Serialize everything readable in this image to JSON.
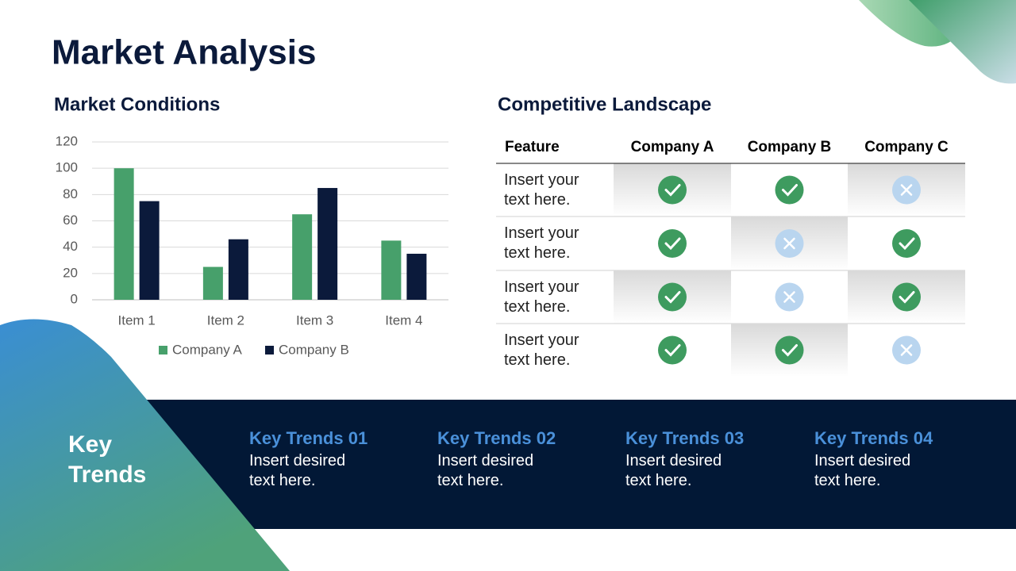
{
  "title": "Market Analysis",
  "chart_data": {
    "type": "bar",
    "title": "Market Conditions",
    "categories": [
      "Item 1",
      "Item 2",
      "Item 3",
      "Item 4"
    ],
    "series": [
      {
        "name": "Company A",
        "color": "#47a06b",
        "values": [
          100,
          25,
          65,
          45
        ]
      },
      {
        "name": "Company B",
        "color": "#0b1a3b",
        "values": [
          75,
          46,
          85,
          35
        ]
      }
    ],
    "ylim": [
      0,
      120
    ],
    "yticks": [
      0,
      20,
      40,
      60,
      80,
      100,
      120
    ],
    "grid": true,
    "legend": "bottom"
  },
  "table": {
    "title": "Competitive Landscape",
    "header": [
      "Feature",
      "Company A",
      "Company B",
      "Company C"
    ],
    "rows": [
      [
        "Insert your text here.",
        true,
        true,
        false
      ],
      [
        "Insert your text here.",
        true,
        false,
        true
      ],
      [
        "Insert your text here.",
        true,
        false,
        true
      ],
      [
        "Insert your text here.",
        true,
        true,
        false
      ]
    ]
  },
  "trends": {
    "title": "Key Trends",
    "items": [
      {
        "title": "Key Trends 01",
        "text": "Insert desired text here."
      },
      {
        "title": "Key Trends 02",
        "text": "Insert desired text here."
      },
      {
        "title": "Key Trends 03",
        "text": "Insert desired text here."
      },
      {
        "title": "Key Trends 04",
        "text": "Insert desired text here."
      }
    ]
  }
}
